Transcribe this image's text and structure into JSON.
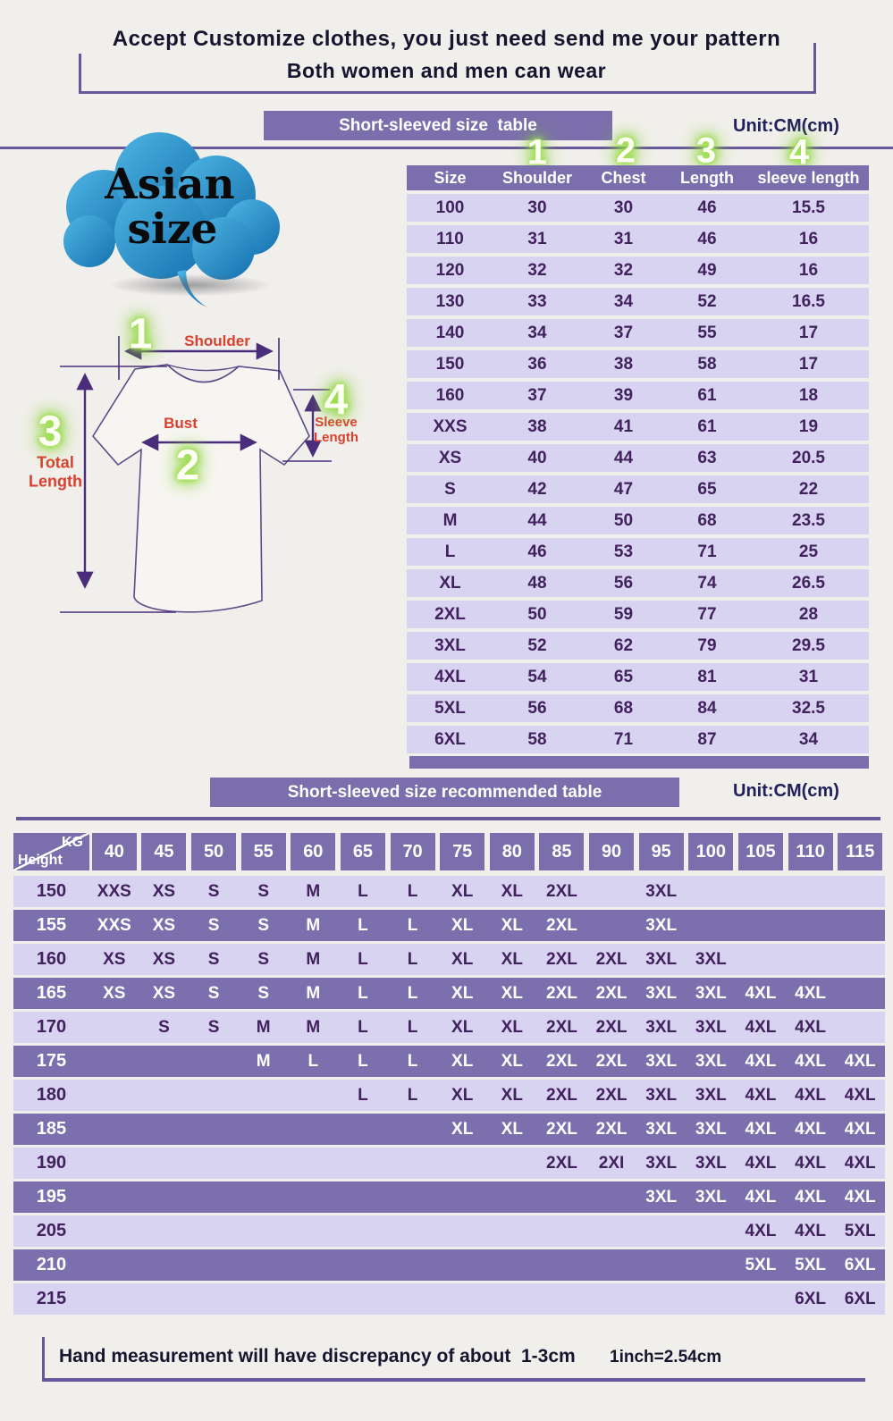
{
  "header": {
    "line1": "Accept Customize clothes, you just need send me your pattern",
    "line2": "Both women and men can wear"
  },
  "size_table": {
    "banner": "Short-sleeved size  table",
    "unit": "Unit:CM(cm)",
    "markers": [
      "1",
      "2",
      "3",
      "4"
    ],
    "columns": [
      "Size",
      "Shoulder",
      "Chest",
      "Length",
      "sleeve length"
    ],
    "rows": [
      [
        "100",
        "30",
        "30",
        "46",
        "15.5"
      ],
      [
        "110",
        "31",
        "31",
        "46",
        "16"
      ],
      [
        "120",
        "32",
        "32",
        "49",
        "16"
      ],
      [
        "130",
        "33",
        "34",
        "52",
        "16.5"
      ],
      [
        "140",
        "34",
        "37",
        "55",
        "17"
      ],
      [
        "150",
        "36",
        "38",
        "58",
        "17"
      ],
      [
        "160",
        "37",
        "39",
        "61",
        "18"
      ],
      [
        "XXS",
        "38",
        "41",
        "61",
        "19"
      ],
      [
        "XS",
        "40",
        "44",
        "63",
        "20.5"
      ],
      [
        "S",
        "42",
        "47",
        "65",
        "22"
      ],
      [
        "M",
        "44",
        "50",
        "68",
        "23.5"
      ],
      [
        "L",
        "46",
        "53",
        "71",
        "25"
      ],
      [
        "XL",
        "48",
        "56",
        "74",
        "26.5"
      ],
      [
        "2XL",
        "50",
        "59",
        "77",
        "28"
      ],
      [
        "3XL",
        "52",
        "62",
        "79",
        "29.5"
      ],
      [
        "4XL",
        "54",
        "65",
        "81",
        "31"
      ],
      [
        "5XL",
        "56",
        "68",
        "84",
        "32.5"
      ],
      [
        "6XL",
        "58",
        "71",
        "87",
        "34"
      ]
    ]
  },
  "diagram": {
    "bubble_line1": "Asian",
    "bubble_line2": "size",
    "markers": [
      "1",
      "2",
      "3",
      "4"
    ],
    "labels": {
      "shoulder": "Shoulder",
      "bust": "Bust",
      "total_line1": "Total",
      "total_line2": "Length",
      "sleeve_line1": "Sleeve",
      "sleeve_line2": "Length"
    }
  },
  "recommend_table": {
    "banner": "Short-sleeved size recommended table",
    "unit": "Unit:CM(cm)",
    "corner": {
      "top": "KG",
      "bottom": "Height"
    },
    "weights": [
      "40",
      "45",
      "50",
      "55",
      "60",
      "65",
      "70",
      "75",
      "80",
      "85",
      "90",
      "95",
      "100",
      "105",
      "110",
      "115"
    ],
    "rows": [
      {
        "height": "150",
        "cells": [
          "XXS",
          "XS",
          "S",
          "S",
          "M",
          "L",
          "L",
          "XL",
          "XL",
          "2XL",
          "",
          "3XL",
          "",
          "",
          "",
          ""
        ]
      },
      {
        "height": "155",
        "cells": [
          "XXS",
          "XS",
          "S",
          "S",
          "M",
          "L",
          "L",
          "XL",
          "XL",
          "2XL",
          "",
          "3XL",
          "",
          "",
          "",
          ""
        ]
      },
      {
        "height": "160",
        "cells": [
          "XS",
          "XS",
          "S",
          "S",
          "M",
          "L",
          "L",
          "XL",
          "XL",
          "2XL",
          "2XL",
          "3XL",
          "3XL",
          "",
          "",
          ""
        ]
      },
      {
        "height": "165",
        "cells": [
          "XS",
          "XS",
          "S",
          "S",
          "M",
          "L",
          "L",
          "XL",
          "XL",
          "2XL",
          "2XL",
          "3XL",
          "3XL",
          "4XL",
          "4XL",
          ""
        ]
      },
      {
        "height": "170",
        "cells": [
          "",
          "S",
          "S",
          "M",
          "M",
          "L",
          "L",
          "XL",
          "XL",
          "2XL",
          "2XL",
          "3XL",
          "3XL",
          "4XL",
          "4XL",
          ""
        ]
      },
      {
        "height": "175",
        "cells": [
          "",
          "",
          "",
          "M",
          "L",
          "L",
          "L",
          "XL",
          "XL",
          "2XL",
          "2XL",
          "3XL",
          "3XL",
          "4XL",
          "4XL",
          "4XL"
        ]
      },
      {
        "height": "180",
        "cells": [
          "",
          "",
          "",
          "",
          "",
          "L",
          "L",
          "XL",
          "XL",
          "2XL",
          "2XL",
          "3XL",
          "3XL",
          "4XL",
          "4XL",
          "4XL"
        ]
      },
      {
        "height": "185",
        "cells": [
          "",
          "",
          "",
          "",
          "",
          "",
          "",
          "XL",
          "XL",
          "2XL",
          "2XL",
          "3XL",
          "3XL",
          "4XL",
          "4XL",
          "4XL"
        ]
      },
      {
        "height": "190",
        "cells": [
          "",
          "",
          "",
          "",
          "",
          "",
          "",
          "",
          "",
          "2XL",
          "2XI",
          "3XL",
          "3XL",
          "4XL",
          "4XL",
          "4XL"
        ]
      },
      {
        "height": "195",
        "cells": [
          "",
          "",
          "",
          "",
          "",
          "",
          "",
          "",
          "",
          "",
          "",
          "3XL",
          "3XL",
          "4XL",
          "4XL",
          "4XL"
        ]
      },
      {
        "height": "205",
        "cells": [
          "",
          "",
          "",
          "",
          "",
          "",
          "",
          "",
          "",
          "",
          "",
          "",
          "",
          "4XL",
          "4XL",
          "5XL"
        ]
      },
      {
        "height": "210",
        "cells": [
          "",
          "",
          "",
          "",
          "",
          "",
          "",
          "",
          "",
          "",
          "",
          "",
          "",
          "5XL",
          "5XL",
          "6XL"
        ]
      },
      {
        "height": "215",
        "cells": [
          "",
          "",
          "",
          "",
          "",
          "",
          "",
          "",
          "",
          "",
          "",
          "",
          "",
          "",
          "6XL",
          "6XL"
        ]
      }
    ]
  },
  "footer": {
    "note": "Hand measurement will have discrepancy of about  1-3cm",
    "conversion": "1inch=2.54cm"
  },
  "colors": {
    "background": "#F1EFEC",
    "banner_purple": "#7B6EAC",
    "row_light": "#D8D3F0",
    "row_dark": "#7C6FAE",
    "text_dark_purple": "#41215E",
    "divider_purple": "#66589A",
    "navy_text": "#20205A",
    "label_red": "#D9402D",
    "glow_green": "#9FE34C",
    "cloud_blue_light": "#4FB6E4",
    "cloud_blue_dark": "#1570AE"
  }
}
